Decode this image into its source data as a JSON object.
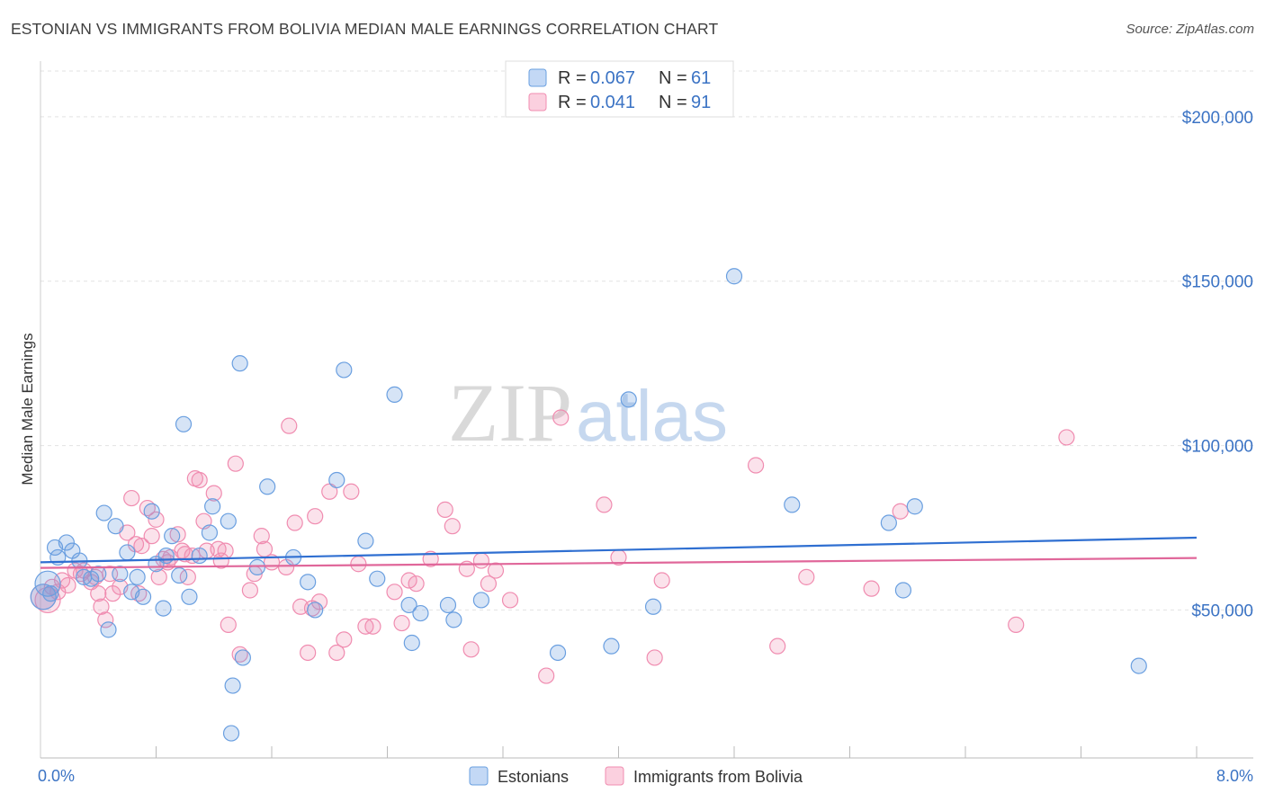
{
  "header": {
    "title": "ESTONIAN VS IMMIGRANTS FROM BOLIVIA MEDIAN MALE EARNINGS CORRELATION CHART",
    "source": "Source: ZipAtlas.com"
  },
  "watermark": {
    "zip": "ZIP",
    "atlas": "atlas"
  },
  "stats_legend": {
    "rows": [
      {
        "r_label": "R =",
        "r_value": "0.067",
        "n_label": "N =",
        "n_value": "61",
        "color": "#6a9fe0"
      },
      {
        "r_label": "R =",
        "r_value": "0.041",
        "n_label": "N =",
        "n_value": "91",
        "color": "#f08cb0"
      }
    ]
  },
  "chart_data": {
    "type": "scatter",
    "title": "ESTONIAN VS IMMIGRANTS FROM BOLIVIA MEDIAN MALE EARNINGS CORRELATION CHART",
    "ylabel": "Median Male Earnings",
    "xlabel": "",
    "xlim": [
      0,
      8
    ],
    "ylim": [
      5000,
      215000
    ],
    "x_tick_labels": [
      "0.0%",
      "8.0%"
    ],
    "y_ticks": [
      {
        "value": 50000,
        "label": "$50,000"
      },
      {
        "value": 100000,
        "label": "$100,000"
      },
      {
        "value": 150000,
        "label": "$150,000"
      },
      {
        "value": 200000,
        "label": "$200,000"
      }
    ],
    "grid": true,
    "legend_position": "bottom-center",
    "series": [
      {
        "name": "Estonians",
        "color": "#6a9fe0",
        "trend": {
          "start": [
            0,
            64500
          ],
          "end": [
            8,
            72000
          ]
        },
        "points": [
          [
            0.05,
            58000
          ],
          [
            0.07,
            55000
          ],
          [
            0.1,
            69000
          ],
          [
            0.12,
            66000
          ],
          [
            0.18,
            70500
          ],
          [
            0.22,
            68000
          ],
          [
            0.27,
            65000
          ],
          [
            0.3,
            60000
          ],
          [
            0.35,
            59500
          ],
          [
            0.4,
            61000
          ],
          [
            0.44,
            79500
          ],
          [
            0.47,
            44000
          ],
          [
            0.52,
            75500
          ],
          [
            0.55,
            61000
          ],
          [
            0.6,
            67500
          ],
          [
            0.63,
            55500
          ],
          [
            0.67,
            60000
          ],
          [
            0.71,
            54000
          ],
          [
            0.77,
            80000
          ],
          [
            0.8,
            64000
          ],
          [
            0.85,
            50500
          ],
          [
            0.87,
            66500
          ],
          [
            0.91,
            72500
          ],
          [
            0.96,
            60500
          ],
          [
            0.99,
            106500
          ],
          [
            1.03,
            54000
          ],
          [
            1.1,
            66500
          ],
          [
            1.17,
            73500
          ],
          [
            1.19,
            81500
          ],
          [
            1.3,
            77000
          ],
          [
            1.38,
            125000
          ],
          [
            1.4,
            35500
          ],
          [
            1.33,
            27000
          ],
          [
            1.32,
            12500
          ],
          [
            1.5,
            63000
          ],
          [
            1.57,
            87500
          ],
          [
            1.75,
            66000
          ],
          [
            1.85,
            58500
          ],
          [
            1.9,
            50000
          ],
          [
            2.05,
            89500
          ],
          [
            2.1,
            123000
          ],
          [
            2.25,
            71000
          ],
          [
            2.33,
            59500
          ],
          [
            2.45,
            115500
          ],
          [
            2.55,
            51500
          ],
          [
            2.57,
            40000
          ],
          [
            2.63,
            49000
          ],
          [
            2.82,
            51500
          ],
          [
            2.86,
            47000
          ],
          [
            3.05,
            53000
          ],
          [
            3.58,
            37000
          ],
          [
            3.95,
            39000
          ],
          [
            4.07,
            114000
          ],
          [
            4.24,
            51000
          ],
          [
            4.8,
            151500
          ],
          [
            5.2,
            82000
          ],
          [
            5.87,
            76500
          ],
          [
            5.97,
            56000
          ],
          [
            6.05,
            81500
          ],
          [
            7.6,
            33000
          ],
          [
            0.02,
            54000
          ]
        ]
      },
      {
        "name": "Immigrants from Bolivia",
        "color": "#f08cb0",
        "trend": {
          "start": [
            0,
            62800
          ],
          "end": [
            8,
            65800
          ]
        },
        "points": [
          [
            0.02,
            54000
          ],
          [
            0.05,
            53000
          ],
          [
            0.08,
            57000
          ],
          [
            0.12,
            55500
          ],
          [
            0.15,
            59000
          ],
          [
            0.19,
            57500
          ],
          [
            0.24,
            62000
          ],
          [
            0.28,
            61000
          ],
          [
            0.3,
            62000
          ],
          [
            0.35,
            58500
          ],
          [
            0.38,
            60000
          ],
          [
            0.4,
            55000
          ],
          [
            0.42,
            51000
          ],
          [
            0.45,
            47000
          ],
          [
            0.48,
            61000
          ],
          [
            0.5,
            55000
          ],
          [
            0.55,
            57000
          ],
          [
            0.6,
            73500
          ],
          [
            0.63,
            84000
          ],
          [
            0.66,
            70000
          ],
          [
            0.68,
            55000
          ],
          [
            0.7,
            69500
          ],
          [
            0.74,
            81000
          ],
          [
            0.77,
            72500
          ],
          [
            0.8,
            77500
          ],
          [
            0.82,
            60000
          ],
          [
            0.85,
            65500
          ],
          [
            0.88,
            64500
          ],
          [
            0.9,
            66000
          ],
          [
            0.95,
            73000
          ],
          [
            0.98,
            68000
          ],
          [
            1.0,
            67000
          ],
          [
            1.02,
            60000
          ],
          [
            1.05,
            66500
          ],
          [
            1.07,
            90000
          ],
          [
            1.1,
            89500
          ],
          [
            1.13,
            77000
          ],
          [
            1.15,
            68000
          ],
          [
            1.2,
            85500
          ],
          [
            1.23,
            68500
          ],
          [
            1.25,
            65000
          ],
          [
            1.28,
            68000
          ],
          [
            1.3,
            45500
          ],
          [
            1.35,
            94500
          ],
          [
            1.38,
            36500
          ],
          [
            1.45,
            56000
          ],
          [
            1.48,
            61000
          ],
          [
            1.53,
            72500
          ],
          [
            1.55,
            68500
          ],
          [
            1.6,
            64500
          ],
          [
            1.7,
            63000
          ],
          [
            1.72,
            106000
          ],
          [
            1.76,
            76500
          ],
          [
            1.8,
            51000
          ],
          [
            1.85,
            37000
          ],
          [
            1.88,
            50500
          ],
          [
            1.9,
            78500
          ],
          [
            1.93,
            52500
          ],
          [
            2.0,
            86000
          ],
          [
            2.05,
            37000
          ],
          [
            2.1,
            41000
          ],
          [
            2.15,
            86000
          ],
          [
            2.2,
            64000
          ],
          [
            2.25,
            45000
          ],
          [
            2.3,
            45000
          ],
          [
            2.45,
            55500
          ],
          [
            2.5,
            46000
          ],
          [
            2.55,
            59000
          ],
          [
            2.6,
            58000
          ],
          [
            2.7,
            65500
          ],
          [
            2.8,
            80500
          ],
          [
            2.85,
            75500
          ],
          [
            2.95,
            62500
          ],
          [
            2.98,
            38000
          ],
          [
            3.05,
            65000
          ],
          [
            3.1,
            58000
          ],
          [
            3.15,
            62000
          ],
          [
            3.25,
            53000
          ],
          [
            3.5,
            30000
          ],
          [
            3.6,
            108500
          ],
          [
            3.9,
            82000
          ],
          [
            4.0,
            66000
          ],
          [
            4.25,
            35500
          ],
          [
            4.3,
            59000
          ],
          [
            4.95,
            94000
          ],
          [
            5.1,
            39000
          ],
          [
            5.3,
            60000
          ],
          [
            5.75,
            56500
          ],
          [
            5.95,
            80000
          ],
          [
            6.75,
            45500
          ],
          [
            7.1,
            102500
          ]
        ]
      }
    ]
  }
}
